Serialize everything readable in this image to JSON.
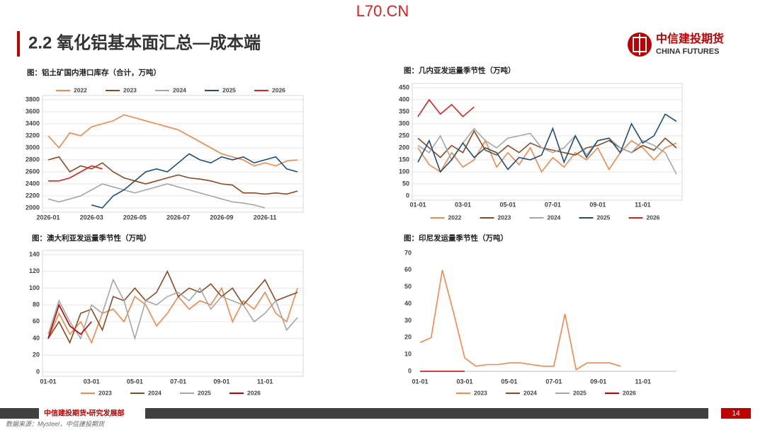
{
  "header": {
    "watermark": "L70.CN",
    "title": "2.2 氧化铝基本面汇总—成本端",
    "logo_cn": "中信建投期货",
    "logo_en": "CHINA FUTURES"
  },
  "chart_data": [
    {
      "type": "line",
      "title": "图：铝土矿国内港口库存（合计，万吨）",
      "legend": "top",
      "grid": true,
      "categories": [
        "2026-01",
        null,
        null,
        null,
        "2026-03",
        null,
        null,
        null,
        "2026-05",
        null,
        null,
        null,
        "2026-07",
        null,
        null,
        null,
        "2026-09",
        null,
        null,
        null,
        "2026-11",
        null,
        null,
        null
      ],
      "ylim": [
        2000,
        3800
      ],
      "yticks": [
        2000,
        2200,
        2400,
        2600,
        2800,
        3000,
        3200,
        3400,
        3600,
        3800
      ],
      "series": [
        {
          "name": "2022",
          "color": "#f4874b",
          "values": [
            3200,
            3000,
            3250,
            3200,
            3350,
            3400,
            3450,
            3550,
            3500,
            3450,
            3400,
            3350,
            3300,
            3200,
            3100,
            3000,
            2900,
            2850,
            2800,
            2700,
            2750,
            2700,
            2780,
            2800
          ]
        },
        {
          "name": "2023",
          "color": "#8b4a24",
          "values": [
            2800,
            2850,
            2600,
            2700,
            2650,
            2750,
            2600,
            2500,
            2450,
            2400,
            2450,
            2500,
            2550,
            2500,
            2480,
            2450,
            2400,
            2380,
            2250,
            2250,
            2230,
            2250,
            2230,
            2280
          ]
        },
        {
          "name": "2024",
          "color": "#a6a6a6",
          "values": [
            2150,
            2100,
            2150,
            2200,
            2300,
            2400,
            2350,
            2300,
            2250,
            2300,
            2350,
            2400,
            2350,
            2300,
            2250,
            2200,
            2150,
            2100,
            2080,
            2050,
            2000,
            null,
            null,
            null
          ]
        },
        {
          "name": "2025",
          "color": "#1f4e79",
          "values": [
            null,
            null,
            null,
            null,
            2050,
            2000,
            2200,
            2300,
            2450,
            2600,
            2650,
            2600,
            2750,
            2900,
            2800,
            2750,
            2850,
            2800,
            2850,
            2750,
            2800,
            2850,
            2650,
            2600
          ]
        },
        {
          "name": "2026",
          "color": "#e02020",
          "values": [
            2450,
            2450,
            2500,
            2600,
            2700,
            2650,
            null,
            null,
            null,
            null,
            null,
            null,
            null,
            null,
            null,
            null,
            null,
            null,
            null,
            null,
            null,
            null,
            null,
            null
          ]
        }
      ]
    },
    {
      "type": "line",
      "title": "图：几内亚发运量季节性（万吨）",
      "legend": "bottom",
      "grid": true,
      "categories": [
        "01-01",
        null,
        null,
        null,
        "03-01",
        null,
        null,
        null,
        "05-01",
        null,
        null,
        null,
        "07-01",
        null,
        null,
        null,
        "09-01",
        null,
        null,
        null,
        "11-01",
        null,
        null,
        null
      ],
      "ylim": [
        0,
        450
      ],
      "yticks": [
        0,
        50,
        100,
        150,
        200,
        250,
        300,
        350,
        400,
        450
      ],
      "series": [
        {
          "name": "2022",
          "color": "#f4874b",
          "values": [
            200,
            130,
            100,
            180,
            120,
            150,
            230,
            120,
            180,
            130,
            200,
            100,
            160,
            120,
            180,
            150,
            200,
            110,
            180,
            230,
            200,
            150,
            200,
            220
          ]
        },
        {
          "name": "2023",
          "color": "#8b4a24",
          "values": [
            240,
            200,
            160,
            210,
            180,
            270,
            190,
            170,
            210,
            180,
            220,
            200,
            190,
            180,
            170,
            200,
            210,
            230,
            200,
            180,
            210,
            190,
            240,
            200
          ]
        },
        {
          "name": "2024",
          "color": "#a6a6a6",
          "values": [
            210,
            180,
            250,
            150,
            220,
            280,
            230,
            200,
            240,
            250,
            260,
            200,
            180,
            200,
            250,
            170,
            230,
            240,
            200,
            180,
            230,
            210,
            180,
            90
          ]
        },
        {
          "name": "2025",
          "color": "#1f4e79",
          "values": [
            140,
            230,
            100,
            150,
            220,
            160,
            200,
            180,
            110,
            160,
            150,
            170,
            280,
            140,
            250,
            160,
            230,
            240,
            180,
            300,
            220,
            250,
            340,
            310
          ]
        },
        {
          "name": "2026",
          "color": "#e02020",
          "values": [
            330,
            400,
            340,
            380,
            330,
            370,
            null,
            null,
            null,
            null,
            null,
            null,
            null,
            null,
            null,
            null,
            null,
            null,
            null,
            null,
            null,
            null,
            null,
            null
          ]
        }
      ]
    },
    {
      "type": "line",
      "title": "图：澳大利亚发运量季节性（万吨）",
      "legend": "bottom",
      "grid": true,
      "categories": [
        "01-01",
        null,
        null,
        null,
        "03-01",
        null,
        null,
        null,
        "05-01",
        null,
        null,
        null,
        "07-01",
        null,
        null,
        null,
        "09-01",
        null,
        null,
        null,
        "11-01",
        null,
        null,
        null
      ],
      "ylim": [
        0,
        140
      ],
      "yticks": [
        0,
        20,
        40,
        60,
        80,
        100,
        120,
        140
      ],
      "series": [
        {
          "name": "2023",
          "color": "#f4874b",
          "values": [
            40,
            70,
            45,
            60,
            35,
            70,
            75,
            60,
            90,
            80,
            55,
            70,
            90,
            75,
            85,
            80,
            100,
            60,
            85,
            75,
            95,
            70,
            60,
            100
          ]
        },
        {
          "name": "2024",
          "color": "#8b4a24",
          "values": [
            40,
            60,
            35,
            70,
            75,
            50,
            90,
            85,
            100,
            85,
            95,
            120,
            90,
            100,
            95,
            105,
            90,
            100,
            80,
            95,
            110,
            85,
            90,
            95
          ]
        },
        {
          "name": "2025",
          "color": "#a6a6a6",
          "values": [
            45,
            85,
            60,
            40,
            80,
            70,
            110,
            85,
            40,
            85,
            80,
            90,
            95,
            85,
            100,
            75,
            90,
            85,
            80,
            60,
            70,
            85,
            50,
            65
          ]
        },
        {
          "name": "2026",
          "color": "#c00000",
          "values": [
            40,
            80,
            55,
            45,
            60,
            null,
            null,
            null,
            null,
            null,
            null,
            null,
            null,
            null,
            null,
            null,
            null,
            null,
            null,
            null,
            null,
            null,
            null,
            null
          ]
        }
      ]
    },
    {
      "type": "line",
      "title": "图：印尼发运量季节性（万吨）",
      "legend": "bottom",
      "grid": false,
      "categories": [
        "01-01",
        null,
        null,
        null,
        "03-01",
        null,
        null,
        null,
        "05-01",
        null,
        null,
        null,
        "07-01",
        null,
        null,
        null,
        "09-01",
        null,
        null,
        null,
        "11-01",
        null,
        null,
        null
      ],
      "ylim": [
        0,
        70
      ],
      "yticks": [
        0,
        10,
        20,
        30,
        40,
        50,
        60,
        70
      ],
      "series": [
        {
          "name": "2023",
          "color": "#f4874b",
          "values": [
            17,
            20,
            60,
            35,
            8,
            3,
            4,
            4,
            5,
            5,
            4,
            3,
            3,
            34,
            1,
            5,
            5,
            5,
            3,
            null,
            null,
            null,
            null,
            null
          ]
        },
        {
          "name": "2024",
          "color": "#8b4a24",
          "values": [
            null,
            null,
            null,
            null,
            null,
            null,
            null,
            null,
            null,
            null,
            null,
            null,
            null,
            null,
            null,
            null,
            null,
            null,
            null,
            null,
            null,
            null,
            null,
            null
          ]
        },
        {
          "name": "2025",
          "color": "#a6a6a6",
          "values": [
            null,
            null,
            null,
            null,
            null,
            null,
            null,
            null,
            null,
            null,
            null,
            null,
            null,
            null,
            null,
            null,
            null,
            null,
            null,
            null,
            null,
            null,
            null,
            null
          ]
        },
        {
          "name": "2026",
          "color": "#c00000",
          "values": [
            0,
            0,
            0,
            0,
            0,
            null,
            null,
            null,
            null,
            null,
            null,
            null,
            null,
            null,
            null,
            null,
            null,
            null,
            null,
            null,
            null,
            null,
            null,
            null
          ]
        }
      ]
    }
  ],
  "footer": {
    "dept": "中信建投期货•研究发展部",
    "source": "数据来源：Mysteel，中信建投期货",
    "page": "14"
  }
}
